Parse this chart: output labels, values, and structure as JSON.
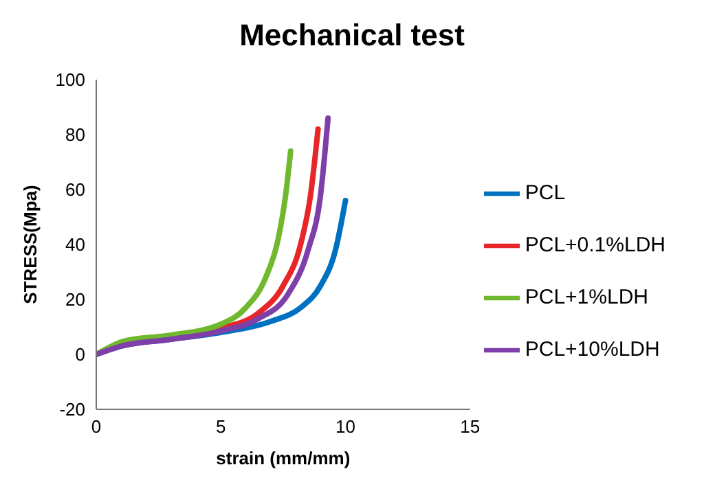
{
  "chart_data": {
    "type": "line",
    "title": "Mechanical test",
    "xlabel": "strain (mm/mm)",
    "ylabel": "STRESS(Mpa)",
    "xlim": [
      0,
      15
    ],
    "xticks": [
      0,
      5,
      10,
      15
    ],
    "ylim": [
      -20,
      100
    ],
    "yticks": [
      -20,
      0,
      20,
      40,
      60,
      80,
      100
    ],
    "grid": false,
    "legend": "right",
    "marker": "none",
    "line_style": "solid",
    "series": [
      {
        "name": "PCL",
        "color": "#0070c0",
        "x": [
          0,
          1,
          3,
          5,
          7,
          8.2,
          9,
          9.6,
          10
        ],
        "values": [
          0,
          3,
          5.5,
          8,
          12,
          17,
          25,
          38,
          56
        ]
      },
      {
        "name": "PCL+0.1%LDH",
        "color": "#e8262a",
        "x": [
          3,
          5,
          6.5,
          7.5,
          8.2,
          8.6,
          8.9
        ],
        "values": [
          6,
          9.5,
          15,
          25,
          40,
          58,
          82
        ]
      },
      {
        "name": "PCL+1%LDH",
        "color": "#70b82e",
        "x": [
          0,
          1.2,
          3,
          5,
          6,
          6.8,
          7.3,
          7.6,
          7.8
        ],
        "values": [
          0,
          5,
          7,
          11,
          17,
          28,
          42,
          58,
          74
        ]
      },
      {
        "name": "PCL+10%LDH",
        "color": "#7f3fa8",
        "x": [
          0,
          1,
          3,
          5,
          6.5,
          7.7,
          8.5,
          9,
          9.3
        ],
        "values": [
          0,
          3,
          5.5,
          8.5,
          13,
          22,
          38,
          58,
          86
        ]
      }
    ]
  }
}
